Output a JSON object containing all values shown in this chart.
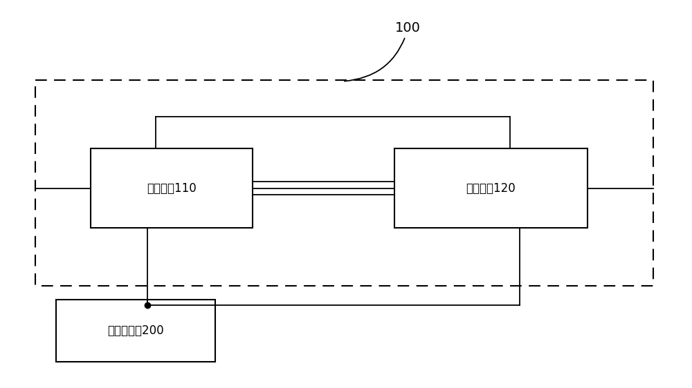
{
  "bg_color": "#ffffff",
  "text_color": "#000000",
  "label_100": "100",
  "label_bias": "偏置电路110",
  "label_voltage": "调压电路120",
  "label_supply": "负压供电源200",
  "fig_w": 10.0,
  "fig_h": 5.62,
  "dpi": 100,
  "font_size": 12
}
